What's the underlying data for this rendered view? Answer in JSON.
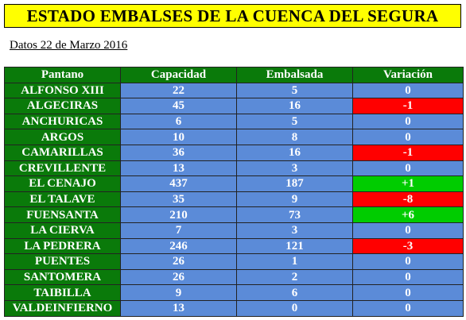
{
  "title": "ESTADO EMBALSES DE LA CUENCA DEL SEGURA",
  "date_line": "Datos 22 de Marzo 2016",
  "colors": {
    "title_bg": "#ffff00",
    "header_bg": "#0a7a0a",
    "cell_bg": "#5b8bd8",
    "negative": "#ff0000",
    "positive": "#00cc00"
  },
  "table": {
    "headers": [
      "Pantano",
      "Capacidad",
      "Embalsada",
      "Variación"
    ],
    "rows": [
      {
        "name": "ALFONSO XIII",
        "capacidad": "22",
        "embalsada": "5",
        "variacion": "0",
        "trend": "zero"
      },
      {
        "name": "ALGECIRAS",
        "capacidad": "45",
        "embalsada": "16",
        "variacion": "-1",
        "trend": "neg"
      },
      {
        "name": "ANCHURICAS",
        "capacidad": "6",
        "embalsada": "5",
        "variacion": "0",
        "trend": "zero"
      },
      {
        "name": "ARGOS",
        "capacidad": "10",
        "embalsada": "8",
        "variacion": "0",
        "trend": "zero"
      },
      {
        "name": "CAMARILLAS",
        "capacidad": "36",
        "embalsada": "16",
        "variacion": "-1",
        "trend": "neg"
      },
      {
        "name": "CREVILLENTE",
        "capacidad": "13",
        "embalsada": "3",
        "variacion": "0",
        "trend": "zero"
      },
      {
        "name": "EL CENAJO",
        "capacidad": "437",
        "embalsada": "187",
        "variacion": "+1",
        "trend": "pos"
      },
      {
        "name": "EL TALAVE",
        "capacidad": "35",
        "embalsada": "9",
        "variacion": "-8",
        "trend": "neg"
      },
      {
        "name": "FUENSANTA",
        "capacidad": "210",
        "embalsada": "73",
        "variacion": "+6",
        "trend": "pos"
      },
      {
        "name": "LA CIERVA",
        "capacidad": "7",
        "embalsada": "3",
        "variacion": "0",
        "trend": "zero"
      },
      {
        "name": "LA PEDRERA",
        "capacidad": "246",
        "embalsada": "121",
        "variacion": "-3",
        "trend": "neg"
      },
      {
        "name": "PUENTES",
        "capacidad": "26",
        "embalsada": "1",
        "variacion": "0",
        "trend": "zero"
      },
      {
        "name": "SANTOMERA",
        "capacidad": "26",
        "embalsada": "2",
        "variacion": "0",
        "trend": "zero"
      },
      {
        "name": "TAIBILLA",
        "capacidad": "9",
        "embalsada": "6",
        "variacion": "0",
        "trend": "zero"
      },
      {
        "name": "VALDEINFIERNO",
        "capacidad": "13",
        "embalsada": "0",
        "variacion": "0",
        "trend": "zero"
      }
    ]
  }
}
